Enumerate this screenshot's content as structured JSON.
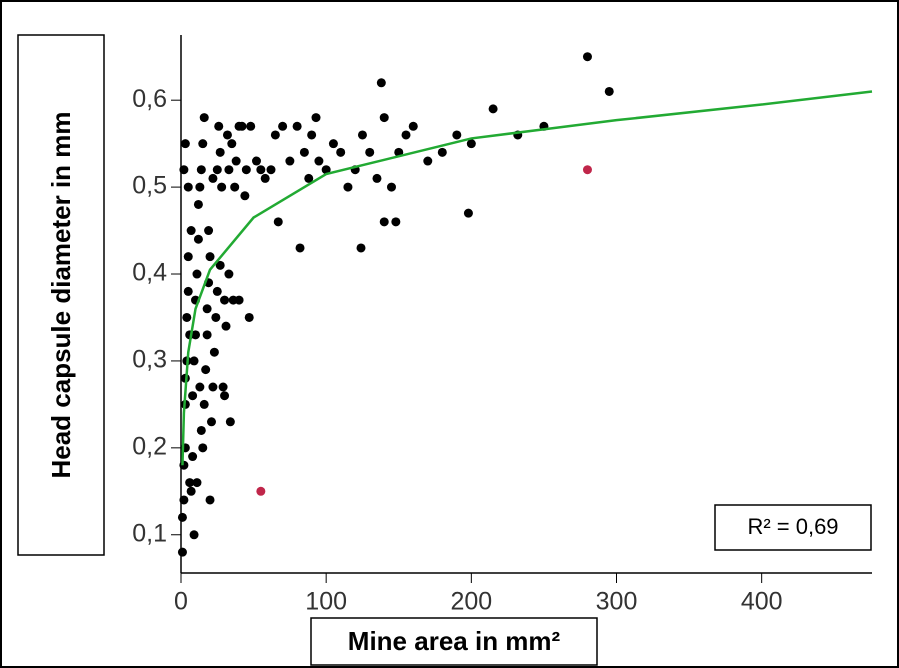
{
  "chart_data": {
    "type": "scatter",
    "x_label": "Mine area in mm²",
    "y_label": "Head capsule diameter in mm",
    "annotation": "R² = 0,69",
    "xlim": [
      0,
      476
    ],
    "xticks": [
      0,
      100,
      200,
      300,
      400
    ],
    "ylim": [
      0.056,
      0.675
    ],
    "yticks": [
      {
        "value": 0.1,
        "label": "0,1"
      },
      {
        "value": 0.2,
        "label": "0,2"
      },
      {
        "value": 0.3,
        "label": "0,3"
      },
      {
        "value": 0.4,
        "label": "0,4"
      },
      {
        "value": 0.5,
        "label": "0,5"
      },
      {
        "value": 0.6,
        "label": "0,6"
      }
    ],
    "series": [
      {
        "color": "#000000",
        "x": [
          1,
          1,
          2,
          2,
          3,
          3,
          4,
          4,
          5,
          5,
          2,
          3,
          6,
          7,
          8,
          8,
          9,
          10,
          10,
          11,
          12,
          12,
          13,
          14,
          15,
          16,
          14,
          15,
          16,
          17,
          18,
          18,
          19,
          20,
          20,
          21,
          22,
          23,
          24,
          25,
          25,
          26,
          27,
          28,
          29,
          30,
          30,
          31,
          32,
          33,
          34,
          35,
          36,
          37,
          38,
          40,
          42,
          45,
          47,
          48,
          52,
          55,
          58,
          62,
          65,
          67,
          70,
          75,
          80,
          82,
          85,
          88,
          90,
          93,
          95,
          100,
          105,
          110,
          115,
          120,
          124,
          125,
          130,
          135,
          138,
          140,
          140,
          145,
          148,
          150,
          155,
          160,
          170,
          180,
          190,
          198,
          200,
          215,
          232,
          250,
          280,
          295,
          5,
          7,
          9,
          3,
          6,
          11,
          13,
          19,
          22,
          27,
          33,
          40,
          44
        ],
        "values": [
          0.08,
          0.12,
          0.14,
          0.18,
          0.2,
          0.25,
          0.3,
          0.35,
          0.38,
          0.42,
          0.52,
          0.55,
          0.16,
          0.15,
          0.19,
          0.26,
          0.3,
          0.33,
          0.37,
          0.4,
          0.44,
          0.48,
          0.5,
          0.52,
          0.55,
          0.58,
          0.22,
          0.2,
          0.25,
          0.29,
          0.33,
          0.36,
          0.39,
          0.42,
          0.14,
          0.23,
          0.27,
          0.31,
          0.35,
          0.38,
          0.52,
          0.57,
          0.54,
          0.5,
          0.27,
          0.26,
          0.37,
          0.34,
          0.56,
          0.52,
          0.23,
          0.55,
          0.37,
          0.5,
          0.53,
          0.37,
          0.57,
          0.52,
          0.35,
          0.57,
          0.53,
          0.52,
          0.51,
          0.52,
          0.56,
          0.46,
          0.57,
          0.53,
          0.57,
          0.43,
          0.54,
          0.51,
          0.56,
          0.58,
          0.53,
          0.52,
          0.55,
          0.54,
          0.5,
          0.52,
          0.43,
          0.56,
          0.54,
          0.51,
          0.62,
          0.46,
          0.58,
          0.5,
          0.46,
          0.54,
          0.56,
          0.57,
          0.53,
          0.54,
          0.56,
          0.47,
          0.55,
          0.59,
          0.56,
          0.57,
          0.65,
          0.61,
          0.5,
          0.45,
          0.1,
          0.28,
          0.33,
          0.16,
          0.27,
          0.45,
          0.51,
          0.41,
          0.4,
          0.57,
          0.49
        ]
      },
      {
        "color": "#c0264a",
        "x": [
          55,
          280
        ],
        "values": [
          0.15,
          0.52
        ]
      },
      {
        "type": "line",
        "color": "#22aa33",
        "x": [
          1,
          2,
          5,
          10,
          20,
          50,
          100,
          200,
          300,
          400,
          476
        ],
        "values": [
          0.18,
          0.24,
          0.31,
          0.36,
          0.405,
          0.465,
          0.515,
          0.556,
          0.577,
          0.595,
          0.61
        ]
      }
    ]
  }
}
